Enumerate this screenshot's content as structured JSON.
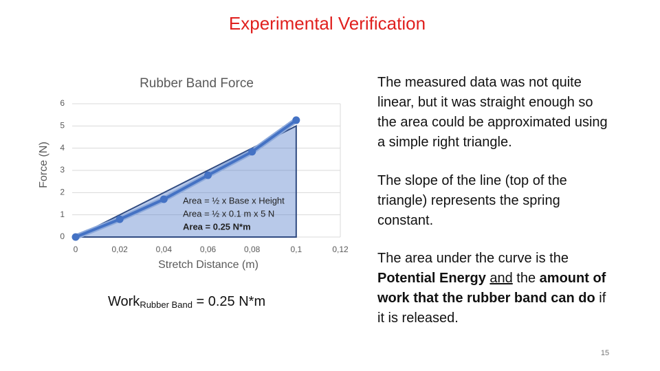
{
  "title": "Experimental Verification",
  "chart_data": {
    "type": "line",
    "title": "Rubber Band Force",
    "x_label": "Stretch Distance (m)",
    "y_label": "Force (N)",
    "x": [
      0,
      0.02,
      0.04,
      0.06,
      0.08,
      0.1
    ],
    "values": [
      0,
      0.8,
      1.7,
      2.78,
      3.84,
      5.26
    ],
    "color": "#4472c4",
    "xlim": [
      0,
      0.12
    ],
    "xticks": [
      0,
      {
        "value": 0.02,
        "label": "0,02"
      },
      {
        "value": 0.04,
        "label": "0,04"
      },
      {
        "value": 0.06,
        "label": "0,06"
      },
      {
        "value": 0.08,
        "label": "0,08"
      },
      {
        "value": 0.1,
        "label": "0,1"
      },
      {
        "value": 0.12,
        "label": "0,12"
      }
    ],
    "ylim": [
      0,
      6
    ],
    "yticks": [
      0,
      1,
      2,
      3,
      4,
      5,
      6
    ],
    "grid": true,
    "triangle": {
      "base": 0.1,
      "height": 5
    },
    "annotations": [
      "Area = ½ x Base x Height",
      "Area = ½ x 0.1  m  x 5 N",
      "Area =  0.25 N*m"
    ]
  },
  "formula": {
    "main": "Work",
    "subscript": "Rubber Band",
    "rest": " = 0.25 N*m"
  },
  "paragraphs": [
    "The measured data was not quite linear, but it was straight enough so the area could be approximated using a simple right triangle.",
    "The slope of the line (top of the triangle) represents the spring constant.",
    [
      {
        "text": "The area under the curve is the "
      },
      {
        "text": "Potential Energy",
        "bold": true
      },
      {
        "text": " "
      },
      {
        "text": "and",
        "underline": true
      },
      {
        "text": " the "
      },
      {
        "text": "amount of work that the rubber band can do",
        "bold": true
      },
      {
        "text": " if it is released."
      }
    ]
  ],
  "page_number": "15"
}
